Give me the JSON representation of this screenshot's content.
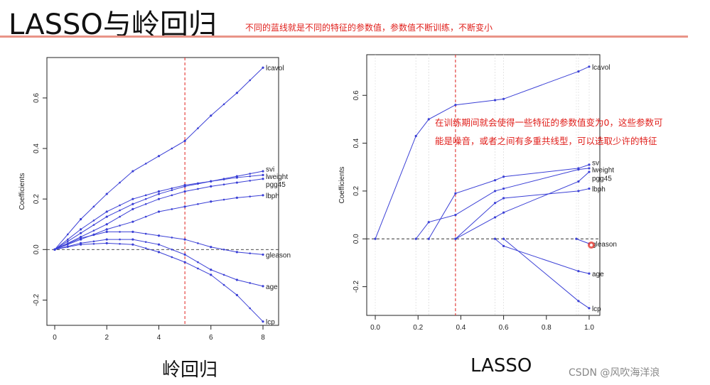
{
  "slide": {
    "title": "LASSO与岭回归",
    "top_note": "不同的蓝线就是不同的特征的参数值，参数值不断训练，不断变小",
    "side_note_line1": "在训练期间就会使得一些特征的参数值变为0，这些参数可",
    "side_note_line2": "能是噪音，或者之间有多重共线型，可以选取少许的特征",
    "left_caption": "岭回归",
    "right_caption": "LASSO",
    "watermark": "CSDN @风吹海洋浪",
    "colors": {
      "line": "#3b40d6",
      "red": "#e0201c",
      "rule": "#e99488"
    }
  },
  "chart_data": [
    {
      "type": "line",
      "title": "岭回归",
      "xlabel": "",
      "ylabel": "Coefficients",
      "xlim": [
        -0.3,
        8.6
      ],
      "ylim": [
        -0.3,
        0.76
      ],
      "xticks": [
        0,
        2,
        4,
        6,
        8
      ],
      "yticks": [
        -0.2,
        0.0,
        0.2,
        0.4,
        0.6
      ],
      "vline": 5,
      "x": [
        0,
        1,
        2,
        3,
        4,
        5,
        6,
        7,
        8
      ],
      "series": [
        {
          "name": "lcavol",
          "values": [
            0,
            0.12,
            0.22,
            0.31,
            0.37,
            0.43,
            0.53,
            0.62,
            0.72
          ]
        },
        {
          "name": "svi",
          "values": [
            0,
            0.08,
            0.15,
            0.2,
            0.23,
            0.255,
            0.27,
            0.29,
            0.31
          ]
        },
        {
          "name": "lweight",
          "values": [
            0,
            0.065,
            0.13,
            0.18,
            0.22,
            0.25,
            0.27,
            0.285,
            0.295
          ]
        },
        {
          "name": "pgg45",
          "values": [
            0,
            0.05,
            0.1,
            0.16,
            0.2,
            0.23,
            0.25,
            0.265,
            0.28
          ]
        },
        {
          "name": "lbph",
          "values": [
            0,
            0.04,
            0.08,
            0.11,
            0.15,
            0.17,
            0.19,
            0.205,
            0.215
          ]
        },
        {
          "name": "gleason",
          "values": [
            0,
            0.045,
            0.07,
            0.07,
            0.055,
            0.04,
            0.01,
            -0.01,
            -0.02
          ]
        },
        {
          "name": "age",
          "values": [
            0,
            0.025,
            0.04,
            0.04,
            0.02,
            -0.02,
            -0.08,
            -0.12,
            -0.145
          ]
        },
        {
          "name": "lcp",
          "values": [
            0,
            0.02,
            0.025,
            0.02,
            -0.01,
            -0.05,
            -0.1,
            -0.18,
            -0.285
          ]
        }
      ],
      "label_offsets": {
        "lcavol": 0,
        "svi": 0.01,
        "lweight": -0.005,
        "pgg45": -0.02,
        "lbph": 0,
        "gleason": 0,
        "age": 0,
        "lcp": 0
      }
    },
    {
      "type": "line",
      "title": "LASSO",
      "xlabel": "",
      "ylabel": "Coefficients",
      "xlim": [
        -0.04,
        1.05
      ],
      "ylim": [
        -0.32,
        0.77
      ],
      "xticks": [
        0.0,
        0.2,
        0.4,
        0.6,
        0.8,
        1.0
      ],
      "yticks": [
        -0.2,
        0.0,
        0.2,
        0.4,
        0.6
      ],
      "vline": 0.375,
      "series": [
        {
          "name": "lcavol",
          "x": [
            0,
            0.19,
            0.25,
            0.375,
            0.56,
            0.6,
            0.95,
            1.0
          ],
          "values": [
            0,
            0.43,
            0.5,
            0.56,
            0.58,
            0.585,
            0.7,
            0.72
          ]
        },
        {
          "name": "svi",
          "x": [
            0.25,
            0.375,
            0.56,
            0.6,
            0.95,
            1.0
          ],
          "values": [
            0,
            0.19,
            0.245,
            0.26,
            0.295,
            0.31
          ]
        },
        {
          "name": "lweight",
          "x": [
            0.19,
            0.25,
            0.375,
            0.56,
            0.6,
            0.95,
            1.0
          ],
          "values": [
            0,
            0.07,
            0.1,
            0.2,
            0.21,
            0.29,
            0.295
          ]
        },
        {
          "name": "pgg45",
          "x": [
            0.375,
            0.56,
            0.6,
            0.95,
            1.0
          ],
          "values": [
            0,
            0.09,
            0.11,
            0.24,
            0.28
          ]
        },
        {
          "name": "lbph",
          "x": [
            0.375,
            0.56,
            0.6,
            0.95,
            1.0
          ],
          "values": [
            0,
            0.15,
            0.17,
            0.2,
            0.21
          ]
        },
        {
          "name": "gleason",
          "x": [
            0.94,
            1.0
          ],
          "values": [
            0,
            -0.02
          ]
        },
        {
          "name": "age",
          "x": [
            0.56,
            0.6,
            0.95,
            1.0
          ],
          "values": [
            0,
            -0.03,
            -0.135,
            -0.145
          ]
        },
        {
          "name": "lcp",
          "x": [
            0.6,
            0.95,
            1.0
          ],
          "values": [
            0,
            -0.26,
            -0.29
          ]
        }
      ],
      "label_offsets": {
        "lcavol": 0,
        "svi": 0.01,
        "lweight": -0.005,
        "pgg45": -0.025,
        "lbph": 0,
        "gleason": 0,
        "age": 0,
        "lcp": 0
      }
    }
  ]
}
